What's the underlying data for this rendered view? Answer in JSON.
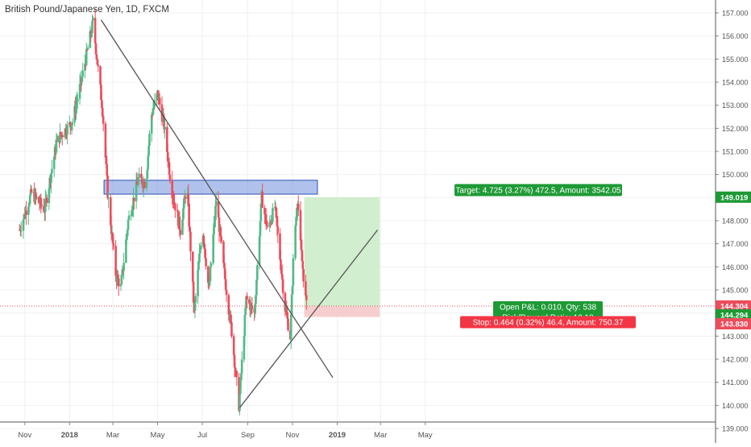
{
  "header": {
    "title": "British Pound/Japanese Yen, 1D, FXCM"
  },
  "chart_data": {
    "type": "candlestick",
    "title": "British Pound/Japanese Yen, 1D, FXCM",
    "y_axis_labels": [
      "139.000",
      "140.000",
      "141.000",
      "142.000",
      "143.000",
      "144.000",
      "145.000",
      "146.000",
      "147.000",
      "148.000",
      "149.000",
      "150.000",
      "151.000",
      "152.000",
      "153.000",
      "154.000",
      "155.000",
      "156.000",
      "157.000"
    ],
    "x_axis_labels": [
      "Nov",
      "2018",
      "Mar",
      "May",
      "Jul",
      "Sep",
      "Nov",
      "2019",
      "Mar",
      "May"
    ],
    "ylim": [
      139.0,
      157.3
    ],
    "grid": true,
    "colors": {
      "up": "#53b987",
      "down": "#eb4d5c",
      "line": "#555555",
      "zone": "#6f8fdd",
      "profit_zone": "#c9ebc5",
      "price_line": "#eb4d5c"
    },
    "price_path": [
      [
        "2017-10-25",
        147.6
      ],
      [
        "2017-11-10",
        149.2
      ],
      [
        "2017-11-28",
        148.5
      ],
      [
        "2017-12-15",
        151.5
      ],
      [
        "2018-01-05",
        152.3
      ],
      [
        "2018-01-20",
        154.5
      ],
      [
        "2018-02-02",
        156.6
      ],
      [
        "2018-02-15",
        152.8
      ],
      [
        "2018-02-22",
        149.2
      ],
      [
        "2018-03-05",
        145.7
      ],
      [
        "2018-03-12",
        145.1
      ],
      [
        "2018-03-22",
        148.0
      ],
      [
        "2018-04-05",
        149.8
      ],
      [
        "2018-04-15",
        149.6
      ],
      [
        "2018-04-22",
        152.5
      ],
      [
        "2018-05-01",
        153.5
      ],
      [
        "2018-05-10",
        152.1
      ],
      [
        "2018-05-20",
        149.4
      ],
      [
        "2018-06-01",
        147.6
      ],
      [
        "2018-06-10",
        149.6
      ],
      [
        "2018-06-20",
        144.0
      ],
      [
        "2018-07-01",
        147.8
      ],
      [
        "2018-07-10",
        145.0
      ],
      [
        "2018-07-20",
        148.9
      ],
      [
        "2018-07-30",
        146.0
      ],
      [
        "2018-08-10",
        143.2
      ],
      [
        "2018-08-20",
        140.0
      ],
      [
        "2018-08-30",
        144.6
      ],
      [
        "2018-09-10",
        144.0
      ],
      [
        "2018-09-20",
        149.0
      ],
      [
        "2018-09-28",
        147.6
      ],
      [
        "2018-10-08",
        148.6
      ],
      [
        "2018-10-22",
        144.2
      ],
      [
        "2018-10-29",
        143.0
      ],
      [
        "2018-11-03",
        147.0
      ],
      [
        "2018-11-08",
        149.0
      ],
      [
        "2018-11-12",
        146.9
      ],
      [
        "2018-11-20",
        144.3
      ]
    ],
    "annotations": {
      "resistance_zone": {
        "x1": "2018-02-17",
        "x2": "2018-12-05",
        "y_low": 149.15,
        "y_high": 149.75
      },
      "trendline_down": {
        "from": [
          "2018-02-13",
          156.7
        ],
        "to": [
          "2018-12-26",
          141.2
        ]
      },
      "trendline_up": {
        "from": [
          "2018-08-21",
          139.9
        ],
        "to": [
          "2019-02-25",
          147.6
        ]
      },
      "position": {
        "x1": "2018-11-17",
        "x2": "2019-02-28",
        "target": 149.019,
        "entry": 144.294,
        "stop": 143.83
      },
      "target_label": "Target: 4.725 (3.27%) 472.5, Amount: 3542.05",
      "pnl_label": "Open P&L: 0.010, Qty: 538",
      "rr_label": "Risk/Reward Ratio: 10.18",
      "stop_label": "Stop: 0.464 (0.32%) 46.4, Amount: 750.37"
    },
    "price_tags": [
      {
        "value": "149.019",
        "price": 149.019,
        "color": "#1e9a35"
      },
      {
        "value": "144.304",
        "price": 144.304,
        "color": "#eb4d5c"
      },
      {
        "value": "144.294",
        "price": 144.294,
        "color": "#1e9a35"
      },
      {
        "value": "143.830",
        "price": 143.83,
        "color": "#eb4d5c"
      }
    ]
  }
}
